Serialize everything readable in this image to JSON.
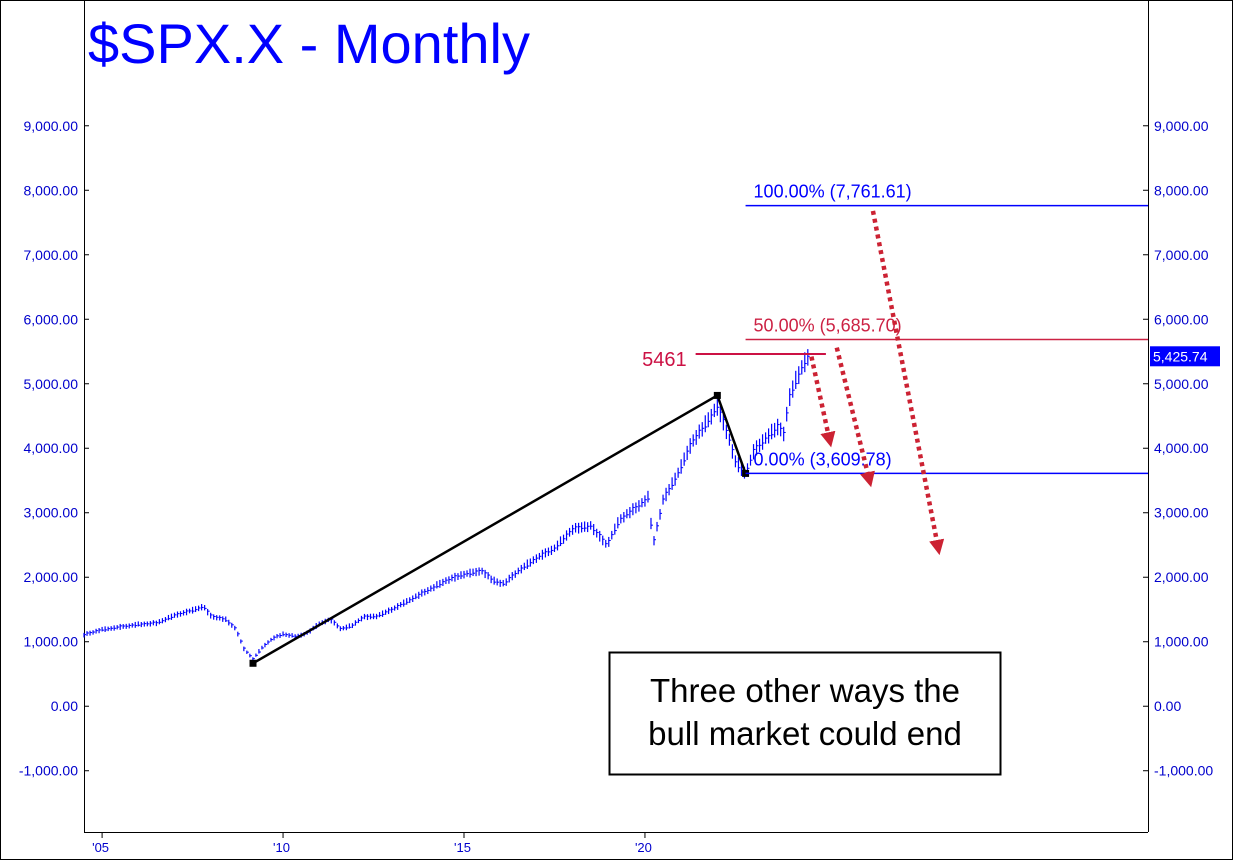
{
  "chart_data": {
    "type": "bar",
    "title": "$SPX.X - Monthly",
    "y_ticks": [
      "9,000.00",
      "8,000.00",
      "7,000.00",
      "6,000.00",
      "5,000.00",
      "4,000.00",
      "3,000.00",
      "2,000.00",
      "1,000.00",
      "0.00",
      "-1,000.00"
    ],
    "y_tick_values": [
      9000,
      8000,
      7000,
      6000,
      5000,
      4000,
      3000,
      2000,
      1000,
      0,
      -1000
    ],
    "x_ticks": [
      "'05",
      "'10",
      "'15",
      "'20"
    ],
    "x_tick_values": [
      2005,
      2010,
      2015,
      2020
    ],
    "xlim": [
      2004.5,
      2033.9
    ],
    "ylim": [
      -1950,
      10950
    ],
    "series": [
      {
        "values": [
          [
            2004.5,
            1110
          ],
          [
            2005.0,
            1190
          ],
          [
            2005.5,
            1230
          ],
          [
            2006.0,
            1270
          ],
          [
            2006.5,
            1290
          ],
          [
            2007.0,
            1410
          ],
          [
            2007.5,
            1490
          ],
          [
            2007.8,
            1550
          ],
          [
            2008.0,
            1400
          ],
          [
            2008.4,
            1350
          ],
          [
            2008.7,
            1200
          ],
          [
            2008.9,
            900
          ],
          [
            2009.17,
            735
          ],
          [
            2009.4,
            900
          ],
          [
            2009.7,
            1050
          ],
          [
            2010.0,
            1120
          ],
          [
            2010.4,
            1080
          ],
          [
            2010.7,
            1150
          ],
          [
            2011.0,
            1280
          ],
          [
            2011.3,
            1350
          ],
          [
            2011.6,
            1200
          ],
          [
            2011.9,
            1250
          ],
          [
            2012.2,
            1380
          ],
          [
            2012.6,
            1400
          ],
          [
            2013.0,
            1500
          ],
          [
            2013.5,
            1650
          ],
          [
            2014.0,
            1800
          ],
          [
            2014.5,
            1950
          ],
          [
            2015.0,
            2050
          ],
          [
            2015.5,
            2100
          ],
          [
            2015.8,
            1950
          ],
          [
            2016.1,
            1900
          ],
          [
            2016.5,
            2100
          ],
          [
            2017.0,
            2300
          ],
          [
            2017.5,
            2450
          ],
          [
            2018.0,
            2750
          ],
          [
            2018.5,
            2800
          ],
          [
            2018.95,
            2500
          ],
          [
            2019.3,
            2900
          ],
          [
            2019.8,
            3100
          ],
          [
            2020.1,
            3250
          ],
          [
            2020.22,
            2500
          ],
          [
            2020.5,
            3200
          ],
          [
            2020.9,
            3600
          ],
          [
            2021.3,
            4100
          ],
          [
            2021.7,
            4400
          ],
          [
            2022.0,
            4650
          ],
          [
            2022.3,
            4200
          ],
          [
            2022.5,
            3800
          ],
          [
            2022.78,
            3600
          ],
          [
            2023.0,
            3950
          ],
          [
            2023.4,
            4200
          ],
          [
            2023.7,
            4350
          ],
          [
            2023.82,
            4200
          ],
          [
            2024.0,
            4800
          ],
          [
            2024.2,
            5100
          ],
          [
            2024.4,
            5330
          ],
          [
            2024.5,
            5426
          ]
        ]
      }
    ],
    "pattern_points": [
      {
        "x": 2009.17,
        "y": 666
      },
      {
        "x": 2022.0,
        "y": 4819
      },
      {
        "x": 2022.78,
        "y": 3609.78
      }
    ],
    "fib_levels": [
      {
        "label": "100.00% (7,761.61)",
        "value": 7761.61,
        "color": "#0000ff",
        "x_start": 2022.78
      },
      {
        "label": "50.00% (5,685.70)",
        "value": 5685.7,
        "color": "#cc2244",
        "x_start": 2022.78
      },
      {
        "label": "0.00% (3,609.78)",
        "value": 3609.78,
        "color": "#0000ff",
        "x_start": 2022.78
      }
    ],
    "mark_5461": {
      "label": "5461",
      "value": 5461,
      "x_start": 2021.4,
      "x_end": 2025.0
    },
    "last_price": {
      "label": "5,425.74",
      "value": 5425.74
    },
    "arrows": [
      {
        "from": [
          2024.6,
          5420
        ],
        "to": [
          2025.1,
          4130
        ]
      },
      {
        "from": [
          2025.3,
          5560
        ],
        "to": [
          2026.2,
          3510
        ]
      },
      {
        "from": [
          2026.3,
          7680
        ],
        "to": [
          2028.1,
          2460
        ]
      }
    ],
    "annotation": {
      "line1": "Three other ways the",
      "line2": "bull market could end"
    },
    "colors": {
      "price": "#0000ff",
      "title": "#0000ff",
      "pattern": "#000000",
      "arrow": "#cc2233",
      "last_price_bg": "#0000ff"
    }
  }
}
